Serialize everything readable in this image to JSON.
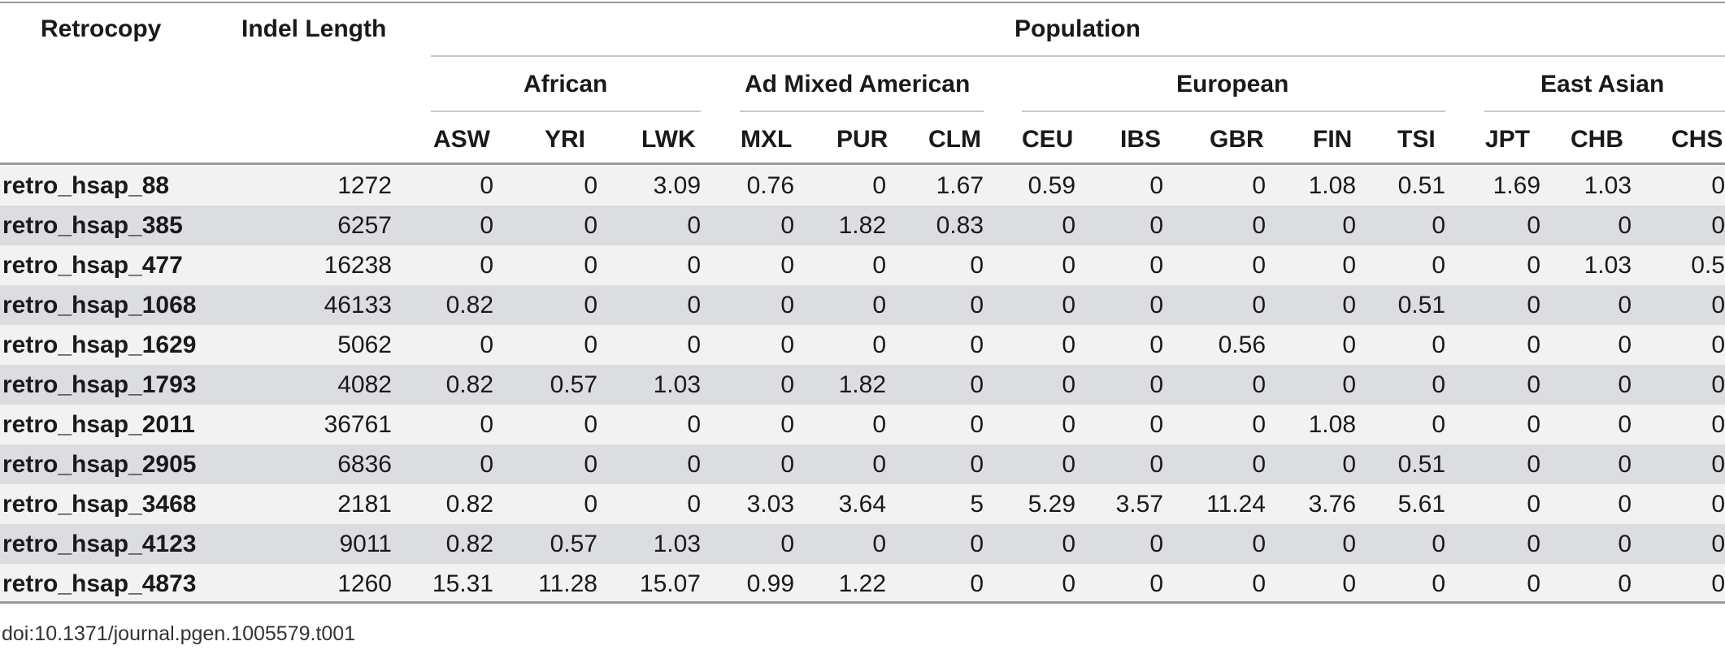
{
  "table": {
    "col_retrocopy": "Retrocopy",
    "col_indel_length": "Indel Length",
    "group_population": "Population",
    "subgroups": [
      "African",
      "Ad Mixed American",
      "European",
      "East Asian"
    ],
    "populations": [
      "ASW",
      "YRI",
      "LWK",
      "MXL",
      "PUR",
      "CLM",
      "CEU",
      "IBS",
      "GBR",
      "FIN",
      "TSI",
      "JPT",
      "CHB",
      "CHS"
    ],
    "rows": [
      {
        "name": "retro_hsap_88",
        "length": "1272",
        "values": [
          "0",
          "0",
          "3.09",
          "0.76",
          "0",
          "1.67",
          "0.59",
          "0",
          "0",
          "1.08",
          "0.51",
          "1.69",
          "1.03",
          "0"
        ]
      },
      {
        "name": "retro_hsap_385",
        "length": "6257",
        "values": [
          "0",
          "0",
          "0",
          "0",
          "1.82",
          "0.83",
          "0",
          "0",
          "0",
          "0",
          "0",
          "0",
          "0",
          "0"
        ]
      },
      {
        "name": "retro_hsap_477",
        "length": "16238",
        "values": [
          "0",
          "0",
          "0",
          "0",
          "0",
          "0",
          "0",
          "0",
          "0",
          "0",
          "0",
          "0",
          "1.03",
          "0.5"
        ]
      },
      {
        "name": "retro_hsap_1068",
        "length": "46133",
        "values": [
          "0.82",
          "0",
          "0",
          "0",
          "0",
          "0",
          "0",
          "0",
          "0",
          "0",
          "0.51",
          "0",
          "0",
          "0"
        ]
      },
      {
        "name": "retro_hsap_1629",
        "length": "5062",
        "values": [
          "0",
          "0",
          "0",
          "0",
          "0",
          "0",
          "0",
          "0",
          "0.56",
          "0",
          "0",
          "0",
          "0",
          "0"
        ]
      },
      {
        "name": "retro_hsap_1793",
        "length": "4082",
        "values": [
          "0.82",
          "0.57",
          "1.03",
          "0",
          "1.82",
          "0",
          "0",
          "0",
          "0",
          "0",
          "0",
          "0",
          "0",
          "0"
        ]
      },
      {
        "name": "retro_hsap_2011",
        "length": "36761",
        "values": [
          "0",
          "0",
          "0",
          "0",
          "0",
          "0",
          "0",
          "0",
          "0",
          "1.08",
          "0",
          "0",
          "0",
          "0"
        ]
      },
      {
        "name": "retro_hsap_2905",
        "length": "6836",
        "values": [
          "0",
          "0",
          "0",
          "0",
          "0",
          "0",
          "0",
          "0",
          "0",
          "0",
          "0.51",
          "0",
          "0",
          "0"
        ]
      },
      {
        "name": "retro_hsap_3468",
        "length": "2181",
        "values": [
          "0.82",
          "0",
          "0",
          "3.03",
          "3.64",
          "5",
          "5.29",
          "3.57",
          "11.24",
          "3.76",
          "5.61",
          "0",
          "0",
          "0"
        ]
      },
      {
        "name": "retro_hsap_4123",
        "length": "9011",
        "values": [
          "0.82",
          "0.57",
          "1.03",
          "0",
          "0",
          "0",
          "0",
          "0",
          "0",
          "0",
          "0",
          "0",
          "0",
          "0"
        ]
      },
      {
        "name": "retro_hsap_4873",
        "length": "1260",
        "values": [
          "15.31",
          "11.28",
          "15.07",
          "0.99",
          "1.22",
          "0",
          "0",
          "0",
          "0",
          "0",
          "0",
          "0",
          "0",
          "0"
        ]
      }
    ]
  },
  "footer": {
    "doi": "doi:10.1371/journal.pgen.1005579.t001"
  }
}
